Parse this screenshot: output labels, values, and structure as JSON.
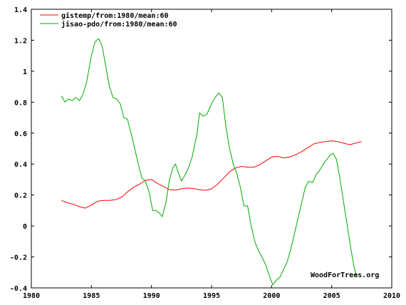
{
  "chart_data": {
    "type": "line",
    "title": "",
    "xlabel": "",
    "ylabel": "",
    "xlim": [
      1980,
      2010
    ],
    "ylim": [
      -0.4,
      1.4
    ],
    "x_ticks": [
      "1980",
      "1985",
      "1990",
      "1995",
      "2000",
      "2005",
      "2010"
    ],
    "y_ticks": [
      "-0.4",
      "-0.2",
      "0",
      "0.2",
      "0.4",
      "0.6",
      "0.8",
      "1",
      "1.2",
      "1.4"
    ],
    "legend_position": "top-left",
    "grid": false,
    "series": [
      {
        "name": "gistemp/from:1980/mean:60",
        "color": "#ff0000",
        "points": [
          [
            1982.5,
            0.165
          ],
          [
            1983.0,
            0.15
          ],
          [
            1983.5,
            0.14
          ],
          [
            1984.0,
            0.125
          ],
          [
            1984.5,
            0.115
          ],
          [
            1985.0,
            0.135
          ],
          [
            1985.5,
            0.16
          ],
          [
            1986.0,
            0.165
          ],
          [
            1986.5,
            0.165
          ],
          [
            1987.0,
            0.17
          ],
          [
            1987.5,
            0.185
          ],
          [
            1988.0,
            0.22
          ],
          [
            1988.5,
            0.25
          ],
          [
            1989.0,
            0.27
          ],
          [
            1989.5,
            0.295
          ],
          [
            1990.0,
            0.3
          ],
          [
            1990.5,
            0.275
          ],
          [
            1991.0,
            0.255
          ],
          [
            1991.5,
            0.235
          ],
          [
            1992.0,
            0.232
          ],
          [
            1992.5,
            0.24
          ],
          [
            1993.0,
            0.245
          ],
          [
            1993.5,
            0.242
          ],
          [
            1994.0,
            0.235
          ],
          [
            1994.5,
            0.23
          ],
          [
            1995.0,
            0.24
          ],
          [
            1995.5,
            0.27
          ],
          [
            1996.0,
            0.31
          ],
          [
            1996.5,
            0.35
          ],
          [
            1997.0,
            0.375
          ],
          [
            1997.5,
            0.385
          ],
          [
            1998.0,
            0.38
          ],
          [
            1998.5,
            0.38
          ],
          [
            1999.0,
            0.395
          ],
          [
            1999.5,
            0.42
          ],
          [
            2000.0,
            0.445
          ],
          [
            2000.5,
            0.45
          ],
          [
            2001.0,
            0.44
          ],
          [
            2001.5,
            0.445
          ],
          [
            2002.0,
            0.46
          ],
          [
            2002.5,
            0.48
          ],
          [
            2003.0,
            0.505
          ],
          [
            2003.5,
            0.53
          ],
          [
            2004.0,
            0.54
          ],
          [
            2004.5,
            0.545
          ],
          [
            2005.0,
            0.55
          ],
          [
            2005.5,
            0.545
          ],
          [
            2006.0,
            0.535
          ],
          [
            2006.5,
            0.525
          ],
          [
            2007.0,
            0.535
          ],
          [
            2007.5,
            0.545
          ]
        ]
      },
      {
        "name": "jisao-pdo/from:1980/mean:60",
        "color": "#00aa00",
        "points": [
          [
            1982.5,
            0.84
          ],
          [
            1982.8,
            0.8
          ],
          [
            1983.1,
            0.82
          ],
          [
            1983.4,
            0.81
          ],
          [
            1983.7,
            0.83
          ],
          [
            1984.0,
            0.81
          ],
          [
            1984.3,
            0.85
          ],
          [
            1984.6,
            0.93
          ],
          [
            1985.0,
            1.1
          ],
          [
            1985.3,
            1.19
          ],
          [
            1985.6,
            1.21
          ],
          [
            1985.9,
            1.16
          ],
          [
            1986.2,
            1.03
          ],
          [
            1986.5,
            0.9
          ],
          [
            1986.8,
            0.83
          ],
          [
            1987.1,
            0.82
          ],
          [
            1987.4,
            0.79
          ],
          [
            1987.7,
            0.7
          ],
          [
            1988.0,
            0.69
          ],
          [
            1988.3,
            0.6
          ],
          [
            1988.6,
            0.5
          ],
          [
            1988.9,
            0.4
          ],
          [
            1989.2,
            0.31
          ],
          [
            1989.5,
            0.29
          ],
          [
            1989.8,
            0.22
          ],
          [
            1990.1,
            0.1
          ],
          [
            1990.4,
            0.1
          ],
          [
            1990.7,
            0.08
          ],
          [
            1990.9,
            0.06
          ],
          [
            1991.2,
            0.15
          ],
          [
            1991.5,
            0.3
          ],
          [
            1991.8,
            0.38
          ],
          [
            1992.0,
            0.4
          ],
          [
            1992.3,
            0.33
          ],
          [
            1992.5,
            0.29
          ],
          [
            1992.8,
            0.33
          ],
          [
            1993.1,
            0.38
          ],
          [
            1993.4,
            0.45
          ],
          [
            1993.8,
            0.6
          ],
          [
            1994.0,
            0.73
          ],
          [
            1994.3,
            0.71
          ],
          [
            1994.6,
            0.72
          ],
          [
            1995.0,
            0.79
          ],
          [
            1995.3,
            0.83
          ],
          [
            1995.6,
            0.86
          ],
          [
            1995.9,
            0.83
          ],
          [
            1996.2,
            0.64
          ],
          [
            1996.5,
            0.5
          ],
          [
            1996.8,
            0.4
          ],
          [
            1997.1,
            0.34
          ],
          [
            1997.4,
            0.25
          ],
          [
            1997.7,
            0.13
          ],
          [
            1998.0,
            0.13
          ],
          [
            1998.3,
            0.0
          ],
          [
            1998.6,
            -0.1
          ],
          [
            1998.9,
            -0.16
          ],
          [
            1999.2,
            -0.2
          ],
          [
            1999.5,
            -0.25
          ],
          [
            1999.8,
            -0.32
          ],
          [
            2000.1,
            -0.38
          ],
          [
            2000.4,
            -0.35
          ],
          [
            2000.7,
            -0.33
          ],
          [
            2001.0,
            -0.28
          ],
          [
            2001.3,
            -0.23
          ],
          [
            2001.6,
            -0.15
          ],
          [
            2001.9,
            -0.05
          ],
          [
            2002.2,
            0.05
          ],
          [
            2002.5,
            0.15
          ],
          [
            2002.8,
            0.25
          ],
          [
            2003.1,
            0.29
          ],
          [
            2003.4,
            0.28
          ],
          [
            2003.7,
            0.33
          ],
          [
            2004.0,
            0.36
          ],
          [
            2004.3,
            0.4
          ],
          [
            2004.6,
            0.43
          ],
          [
            2004.9,
            0.46
          ],
          [
            2005.1,
            0.47
          ],
          [
            2005.4,
            0.43
          ],
          [
            2005.7,
            0.3
          ],
          [
            2006.0,
            0.15
          ],
          [
            2006.3,
            0.0
          ],
          [
            2006.6,
            -0.15
          ],
          [
            2006.9,
            -0.28
          ],
          [
            2007.1,
            -0.33
          ]
        ]
      }
    ]
  },
  "watermark": "WoodForTrees.org"
}
